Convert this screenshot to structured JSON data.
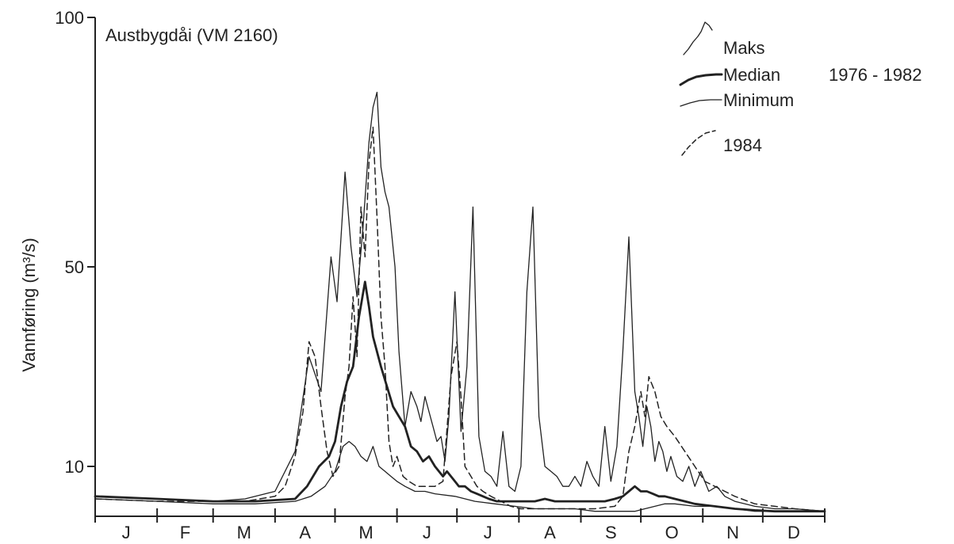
{
  "chart_data": {
    "type": "line",
    "title": "Austbygdåi (VM 2160)",
    "ylabel": "Vannføring (m³/s)",
    "xlabel": "",
    "yticks": [
      10,
      50,
      100
    ],
    "ylim": [
      0,
      100
    ],
    "ylim_note": "",
    "xlim_days": [
      0,
      365
    ],
    "months": [
      "J",
      "F",
      "M",
      "A",
      "M",
      "J",
      "J",
      "A",
      "S",
      "O",
      "N",
      "D"
    ],
    "legend_period": "1976 - 1982",
    "grid": false,
    "legend_position": "top-right",
    "series": [
      {
        "name": "Maks",
        "style": "thin",
        "x": [
          0,
          31,
          59,
          75,
          90,
          100,
          107,
          113,
          118,
          121,
          125,
          128,
          131,
          134,
          137,
          139,
          141,
          143,
          145,
          147,
          150,
          152,
          155,
          158,
          161,
          163,
          165,
          167,
          169,
          171,
          173,
          175,
          177,
          180,
          183,
          186,
          189,
          192,
          195,
          198,
          201,
          204,
          207,
          210,
          213,
          216,
          219,
          222,
          225,
          228,
          231,
          234,
          237,
          240,
          243,
          246,
          249,
          252,
          255,
          258,
          261,
          264,
          267,
          270,
          272,
          274,
          276,
          278,
          280,
          282,
          284,
          286,
          288,
          291,
          294,
          297,
          300,
          303,
          307,
          311,
          315,
          320,
          330,
          340,
          350,
          365
        ],
        "y": [
          4,
          3.5,
          3,
          3.5,
          5,
          13,
          32,
          25,
          52,
          43,
          69,
          54,
          44,
          58,
          75,
          82,
          85,
          70,
          65,
          62,
          50,
          33,
          18,
          25,
          22,
          19,
          24,
          21,
          18,
          15,
          16,
          11,
          20,
          45,
          17,
          30,
          62,
          16,
          9,
          8,
          6,
          17,
          6,
          5,
          10,
          45,
          62,
          20,
          10,
          9,
          8,
          6,
          6,
          8,
          6,
          11,
          8,
          6,
          18,
          7,
          14,
          33,
          56,
          25,
          20,
          14,
          22,
          18,
          11,
          15,
          13,
          9,
          12,
          8,
          7,
          10,
          6,
          9,
          5,
          6,
          4,
          3,
          2,
          1.5,
          1.5,
          1
        ]
      },
      {
        "name": "Median",
        "style": "thick",
        "x": [
          0,
          31,
          59,
          80,
          100,
          106,
          112,
          117,
          120,
          123,
          126,
          129,
          132,
          135,
          137,
          139,
          141,
          143,
          146,
          149,
          152,
          155,
          158,
          161,
          164,
          167,
          170,
          172,
          174,
          176,
          178,
          180,
          182,
          185,
          188,
          191,
          194,
          197,
          201,
          205,
          210,
          215,
          220,
          225,
          230,
          235,
          240,
          245,
          250,
          255,
          260,
          264,
          267,
          270,
          273,
          276,
          279,
          282,
          285,
          290,
          295,
          300,
          310,
          320,
          330,
          340,
          350,
          365
        ],
        "y": [
          4,
          3.5,
          3,
          3,
          3.5,
          6,
          10,
          12,
          15,
          22,
          27,
          30,
          40,
          47,
          42,
          36,
          33,
          30,
          26,
          22,
          20,
          18,
          14,
          13,
          11,
          12,
          10,
          9,
          8,
          9,
          8,
          7,
          6,
          6,
          5,
          4.5,
          4,
          3.5,
          3,
          3,
          3,
          3,
          3,
          3.5,
          3,
          3,
          3,
          3,
          3,
          3,
          3.5,
          4,
          5,
          6,
          5,
          5,
          4.5,
          4,
          4,
          3.5,
          3,
          2.5,
          2,
          1.5,
          1.2,
          1,
          1,
          1
        ]
      },
      {
        "name": "Minimum",
        "style": "thin",
        "x": [
          0,
          31,
          59,
          80,
          100,
          108,
          115,
          120,
          124,
          127,
          130,
          133,
          136,
          139,
          142,
          145,
          148,
          151,
          155,
          160,
          165,
          170,
          180,
          190,
          200,
          210,
          220,
          230,
          240,
          250,
          260,
          270,
          275,
          280,
          285,
          290,
          300,
          310,
          320,
          330,
          340,
          350,
          365
        ],
        "y": [
          3.5,
          3,
          2.5,
          2.5,
          3,
          4,
          6,
          9,
          14,
          15,
          14,
          12,
          11,
          14,
          10,
          9,
          8,
          7,
          6,
          5,
          5,
          4.5,
          4,
          3,
          2.5,
          2,
          1.5,
          1.5,
          1.5,
          1,
          1,
          1,
          1.5,
          2,
          2.5,
          2.5,
          2,
          2,
          1.5,
          1,
          1,
          1,
          1
        ]
      },
      {
        "name": "1984",
        "style": "dashed",
        "x": [
          0,
          31,
          59,
          75,
          90,
          95,
          100,
          104,
          107,
          110,
          113,
          116,
          119,
          122,
          125,
          127,
          129,
          131,
          133,
          135,
          137,
          139,
          141,
          143,
          145,
          147,
          149,
          151,
          154,
          157,
          161,
          165,
          170,
          174,
          178,
          181,
          183,
          185,
          188,
          191,
          194,
          198,
          203,
          208,
          213,
          220,
          230,
          240,
          250,
          260,
          264,
          267,
          270,
          273,
          275,
          277,
          280,
          283,
          286,
          290,
          295,
          300,
          305,
          310,
          320,
          330,
          340,
          350,
          365
        ],
        "y": [
          3.5,
          3,
          3,
          3,
          4,
          6,
          12,
          21,
          35,
          32,
          22,
          13,
          8,
          10,
          24,
          30,
          44,
          32,
          62,
          52,
          71,
          78,
          60,
          40,
          30,
          15,
          10,
          12,
          8,
          7,
          6,
          6,
          6,
          7,
          28,
          35,
          24,
          10,
          8,
          6,
          5,
          4,
          3,
          2,
          1.5,
          1.5,
          1.5,
          1.5,
          1.5,
          2,
          4,
          13,
          18,
          25,
          20,
          28,
          25,
          20,
          18,
          16,
          13,
          10,
          7,
          6,
          4,
          2.5,
          2,
          1.5,
          1
        ]
      }
    ]
  }
}
